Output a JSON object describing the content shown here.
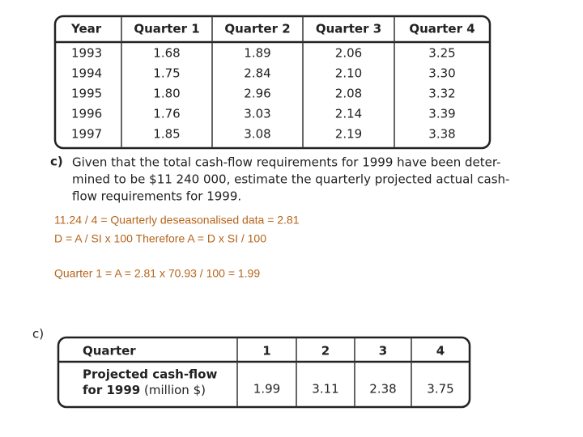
{
  "table1": {
    "header": [
      "Year",
      "Quarter 1",
      "Quarter 2",
      "Quarter 3",
      "Quarter 4"
    ],
    "rows": [
      [
        "1993",
        "1.68",
        "1.89",
        "2.06",
        "3.25"
      ],
      [
        "1994",
        "1.75",
        "2.84",
        "2.10",
        "3.30"
      ],
      [
        "1995",
        "1.80",
        "2.96",
        "2.08",
        "3.32"
      ],
      [
        "1996",
        "1.76",
        "3.03",
        "2.14",
        "3.39"
      ],
      [
        "1997",
        "1.85",
        "3.08",
        "2.19",
        "3.38"
      ]
    ]
  },
  "question": {
    "label": "c)",
    "lines": [
      "Given that the total cash-flow requirements for 1999 have been deter-",
      "mined to be $11 240 000, estimate the quarterly projected actual cash-",
      "flow requirements for 1999."
    ]
  },
  "working": [
    "11.24 / 4 = Quarterly deseasonalised data = 2.81",
    "D = A / SI x 100   Therefore  A = D x SI / 100",
    "Quarter 1 = A = 2.81 x 70.93 / 100 = 1.99"
  ],
  "answer": {
    "label": "c)",
    "header": [
      "Quarter",
      "1",
      "2",
      "3",
      "4"
    ],
    "row_label": {
      "line1": "Projected cash-flow",
      "line2_bold": "for 1999",
      "line2_rest": "(million $)"
    },
    "values": [
      "1.99",
      "3.11",
      "2.38",
      "3.75"
    ]
  }
}
